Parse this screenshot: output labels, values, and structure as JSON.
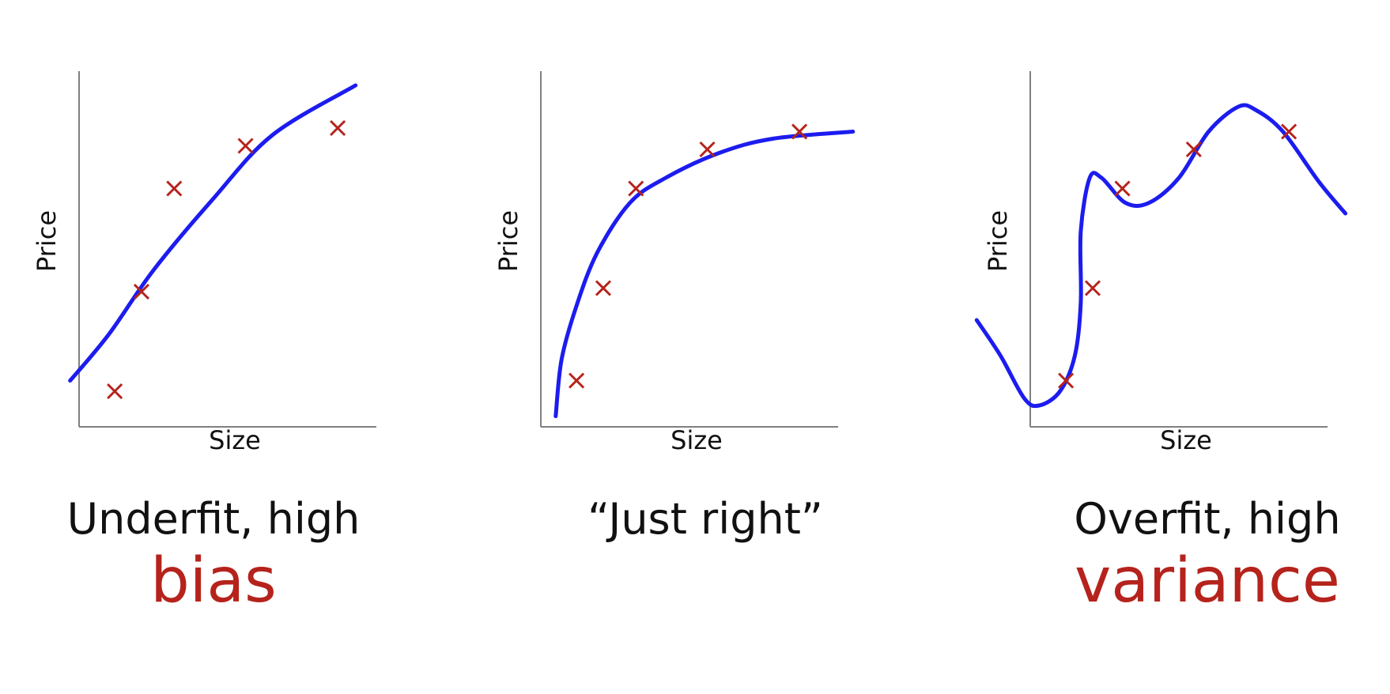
{
  "chart_data": [
    {
      "type": "scatter",
      "xlabel": "Size",
      "ylabel": "Price",
      "caption": "Underfit, high",
      "caption_accent": "bias",
      "points": [
        [
          0.12,
          0.1
        ],
        [
          0.21,
          0.38
        ],
        [
          0.32,
          0.67
        ],
        [
          0.56,
          0.79
        ],
        [
          0.87,
          0.84
        ]
      ],
      "fit": [
        [
          -0.03,
          0.13
        ],
        [
          0.1,
          0.26
        ],
        [
          0.25,
          0.44
        ],
        [
          0.45,
          0.64
        ],
        [
          0.65,
          0.82
        ],
        [
          0.93,
          0.96
        ]
      ]
    },
    {
      "type": "scatter",
      "xlabel": "Size",
      "ylabel": "Price",
      "caption": "“Just right”",
      "caption_accent": "",
      "points": [
        [
          0.12,
          0.13
        ],
        [
          0.21,
          0.39
        ],
        [
          0.32,
          0.67
        ],
        [
          0.56,
          0.78
        ],
        [
          0.87,
          0.83
        ]
      ],
      "fit": [
        [
          0.05,
          0.03
        ],
        [
          0.07,
          0.19
        ],
        [
          0.12,
          0.34
        ],
        [
          0.19,
          0.49
        ],
        [
          0.3,
          0.63
        ],
        [
          0.42,
          0.7
        ],
        [
          0.6,
          0.77
        ],
        [
          0.78,
          0.81
        ],
        [
          1.05,
          0.83
        ]
      ]
    },
    {
      "type": "scatter",
      "xlabel": "Size",
      "ylabel": "Price",
      "caption": "Overfit, high",
      "caption_accent": "variance",
      "points": [
        [
          0.12,
          0.13
        ],
        [
          0.21,
          0.39
        ],
        [
          0.31,
          0.67
        ],
        [
          0.55,
          0.78
        ],
        [
          0.87,
          0.83
        ]
      ],
      "fit": [
        [
          -0.18,
          0.3
        ],
        [
          -0.1,
          0.2
        ],
        [
          -0.02,
          0.08
        ],
        [
          0.03,
          0.06
        ],
        [
          0.1,
          0.1
        ],
        [
          0.15,
          0.2
        ],
        [
          0.17,
          0.35
        ],
        [
          0.17,
          0.55
        ],
        [
          0.2,
          0.7
        ],
        [
          0.24,
          0.7
        ],
        [
          0.32,
          0.63
        ],
        [
          0.4,
          0.63
        ],
        [
          0.5,
          0.7
        ],
        [
          0.6,
          0.83
        ],
        [
          0.7,
          0.9
        ],
        [
          0.76,
          0.89
        ],
        [
          0.85,
          0.83
        ],
        [
          0.97,
          0.69
        ],
        [
          1.06,
          0.6
        ]
      ]
    }
  ],
  "colors": {
    "fit": "#1c1cef",
    "points": "#b5231c",
    "axis": "#808080",
    "text": "#111111",
    "accent": "#b5231c"
  }
}
